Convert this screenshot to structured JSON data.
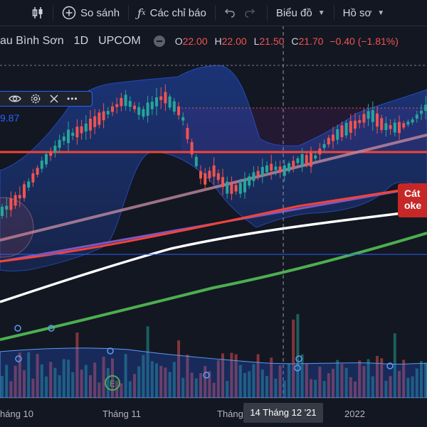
{
  "toolbar": {
    "compare_label": "So sánh",
    "indicators_label": "Các chỉ báo",
    "chart_type_label": "Biểu đồ",
    "profile_label": "Hồ sơ"
  },
  "legend": {
    "symbol": "au Bình Sơn",
    "interval": "1D",
    "exchange": "UPCOM",
    "open_key": "O",
    "open": "22.00",
    "high_key": "H",
    "high": "22.00",
    "low_key": "L",
    "low": "21.50",
    "close_key": "C",
    "close": "21.70",
    "change": "−0.40 (−1.81%)"
  },
  "indicator": {
    "value": "9.87"
  },
  "note": {
    "line1": "Cát",
    "line2": "oke"
  },
  "xaxis": {
    "labels": [
      "háng 10",
      "Tháng 11",
      "Tháng",
      "2022"
    ],
    "crosshair": "14 Tháng 12 '21"
  },
  "colors": {
    "background": "#131722",
    "up": "#26a69a",
    "down": "#ef5350",
    "band": "#2962ff",
    "support_line": "#f44336",
    "ma_white": "#ffffff",
    "ma_green": "#4caf50",
    "trend_purple": "#7e57c2"
  },
  "icons": [
    "candles-icon",
    "plus-circle-icon",
    "fx-icon",
    "undo-icon",
    "redo-icon",
    "chevron-down-icon",
    "eye-icon",
    "gear-icon",
    "close-icon",
    "more-icon",
    "minus-circle-icon",
    "earnings-icon"
  ]
}
